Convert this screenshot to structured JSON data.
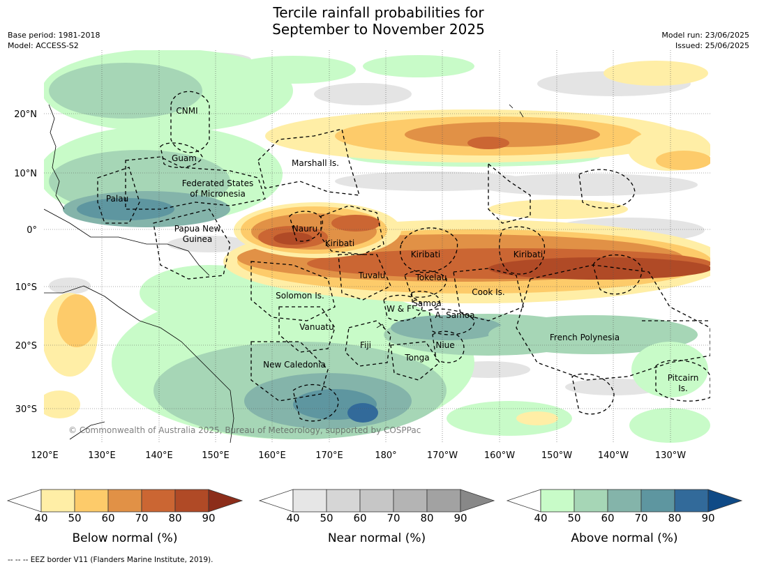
{
  "title_line1": "Tercile rainfall probabilities for",
  "title_line2": "September to November 2025",
  "base_period": "Base period: 1981-2018",
  "model": "Model: ACCESS-S2",
  "model_run": "Model run: 23/06/2025",
  "issued": "Issued: 25/06/2025",
  "axes": {
    "lat_labels": [
      "20°N",
      "10°N",
      "0°",
      "10°S",
      "20°S",
      "30°S"
    ],
    "lon_labels": [
      "120°E",
      "130°E",
      "140°E",
      "150°E",
      "160°E",
      "170°E",
      "180°",
      "170°W",
      "160°W",
      "150°W",
      "140°W",
      "130°W"
    ]
  },
  "places": [
    "CNMI",
    "Guam",
    "Marshall Is.",
    "Federated States",
    "of Micronesia",
    "Palau",
    "Papua New",
    "Guinea",
    "Nauru",
    "Kiribati",
    "Kiribati",
    "Kiribati",
    "Tuvalu",
    "Tokelau",
    "Solomon Is.",
    "Cook Is.",
    "W & F",
    "Samoa",
    "A. Samoa",
    "Vanuatu",
    "Fiji",
    "Niue",
    "Tonga",
    "French Polynesia",
    "New Caledonia",
    "Pitcairn",
    "Is."
  ],
  "copyright": "© Commonwealth of Australia 2025, Bureau of Meteorology, supported by COSPPac",
  "colorbars": [
    {
      "title": "Below normal (%)",
      "ticks": [
        "40",
        "50",
        "60",
        "70",
        "80",
        "90"
      ],
      "colors": [
        "#ffeea6",
        "#fdcb6a",
        "#e19146",
        "#cb6633",
        "#b04a26",
        "#8c2d1a"
      ]
    },
    {
      "title": "Near normal (%)",
      "ticks": [
        "40",
        "50",
        "60",
        "70",
        "80",
        "90"
      ],
      "colors": [
        "#e6e6e6",
        "#d6d6d6",
        "#c6c6c6",
        "#b4b4b4",
        "#a2a2a2",
        "#888888"
      ]
    },
    {
      "title": "Above normal (%)",
      "ticks": [
        "40",
        "50",
        "60",
        "70",
        "80",
        "90"
      ],
      "colors": [
        "#c8fbc8",
        "#a6d6b6",
        "#84b4aa",
        "#5e96a0",
        "#326a9a",
        "#0f4a86"
      ]
    }
  ],
  "eez_note": "--  --  -- EEZ border V11 (Flanders Marine Institute, 2019)."
}
